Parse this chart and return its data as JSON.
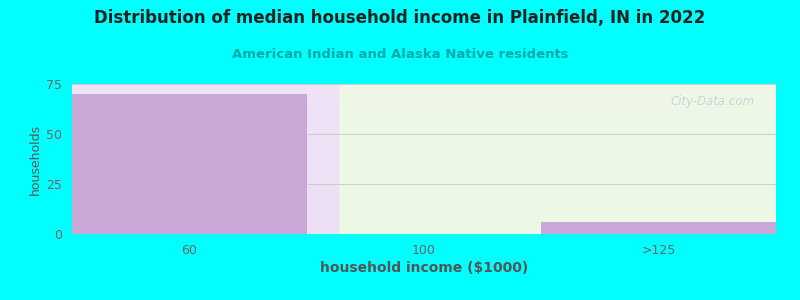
{
  "title": "Distribution of median household income in Plainfield, IN in 2022",
  "subtitle": "American Indian and Alaska Native residents",
  "xlabel": "household income ($1000)",
  "ylabel": "households",
  "categories": [
    "60",
    "100",
    ">125"
  ],
  "values": [
    70,
    0,
    6
  ],
  "bar_color": "#c9a8d8",
  "ylim": [
    0,
    75
  ],
  "yticks": [
    0,
    25,
    50,
    75
  ],
  "background_color": "#00ffff",
  "title_color": "#222222",
  "subtitle_color": "#00aaaa",
  "axis_label_color": "#555555",
  "tick_color": "#666666",
  "grid_color": "#cccccc",
  "watermark": "City-Data.com"
}
